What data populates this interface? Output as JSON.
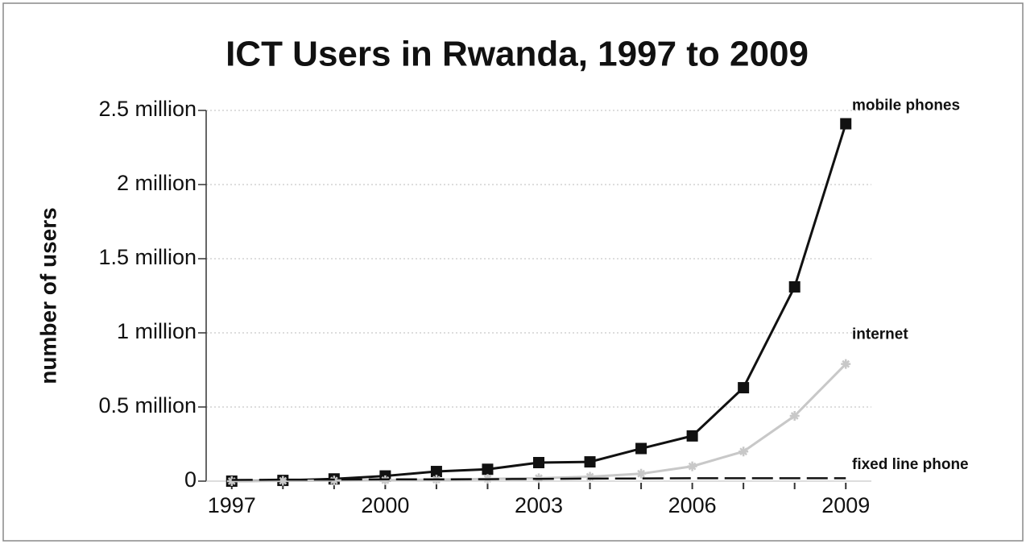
{
  "chart_data": {
    "type": "line",
    "title": "ICT Users in Rwanda, 1997 to 2009",
    "y_label": "number of users",
    "x": [
      1997,
      1998,
      1999,
      2000,
      2001,
      2002,
      2003,
      2004,
      2005,
      2006,
      2007,
      2008,
      2009
    ],
    "series": [
      {
        "name": "mobile phones",
        "color": "#111111",
        "marker": "square",
        "dash": false,
        "values": [
          0,
          5000,
          15000,
          35000,
          65000,
          80000,
          125000,
          130000,
          220000,
          305000,
          630000,
          1310000,
          2410000
        ]
      },
      {
        "name": "internet",
        "color": "#c8c8c8",
        "marker": "star",
        "dash": false,
        "values": [
          0,
          2000,
          4000,
          6000,
          10000,
          15000,
          20000,
          30000,
          50000,
          100000,
          200000,
          440000,
          790000
        ]
      },
      {
        "name": "fixed line phone",
        "color": "#111111",
        "marker": "none",
        "dash": true,
        "values": [
          8000,
          10000,
          11000,
          12000,
          12000,
          13000,
          15000,
          17000,
          18000,
          20000,
          20000,
          20000,
          20000
        ]
      }
    ],
    "xlim": [
      1996.5,
      2009.5
    ],
    "xticks": [
      1997,
      2000,
      2003,
      2006,
      2009
    ],
    "ylim": [
      0,
      2500000
    ],
    "yticks": [
      0,
      {
        "value": 500000,
        "label": "0.5 million"
      },
      {
        "value": 1000000,
        "label": "1 million"
      },
      {
        "value": 1500000,
        "label": "1.5 million"
      },
      {
        "value": 2000000,
        "label": "2 million"
      },
      {
        "value": 2500000,
        "label": "2.5 million"
      }
    ],
    "grid": true
  }
}
